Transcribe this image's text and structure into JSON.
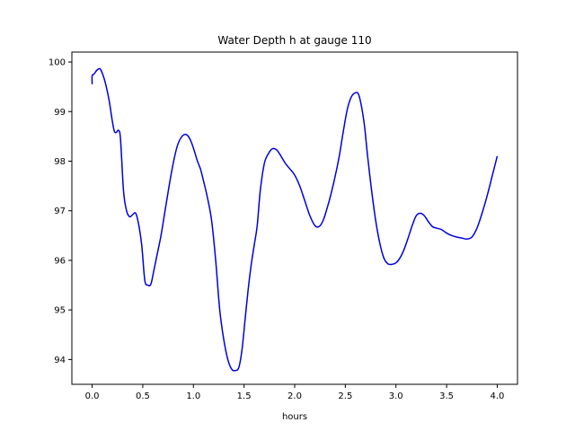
{
  "chart_data": {
    "type": "line",
    "title": "Water Depth h at gauge 110",
    "xlabel": "hours",
    "ylabel": "",
    "xlim": [
      -0.2,
      4.2
    ],
    "ylim": [
      93.5,
      100.2
    ],
    "xticks": [
      0.0,
      0.5,
      1.0,
      1.5,
      2.0,
      2.5,
      3.0,
      3.5,
      4.0
    ],
    "xtick_labels": [
      "0.0",
      "0.5",
      "1.0",
      "1.5",
      "2.0",
      "2.5",
      "3.0",
      "3.5",
      "4.0"
    ],
    "yticks": [
      94,
      95,
      96,
      97,
      98,
      99,
      100
    ],
    "ytick_labels": [
      "94",
      "95",
      "96",
      "97",
      "98",
      "99",
      "100"
    ],
    "grid": false,
    "series": [
      {
        "color": "#0000dd",
        "x": [
          0.0,
          0.0,
          0.02,
          0.05,
          0.08,
          0.11,
          0.14,
          0.17,
          0.2,
          0.22,
          0.24,
          0.26,
          0.28,
          0.31,
          0.34,
          0.37,
          0.4,
          0.43,
          0.46,
          0.49,
          0.52,
          0.55,
          0.58,
          0.61,
          0.64,
          0.68,
          0.72,
          0.76,
          0.8,
          0.84,
          0.88,
          0.92,
          0.95,
          0.98,
          1.01,
          1.04,
          1.07,
          1.1,
          1.14,
          1.18,
          1.22,
          1.26,
          1.3,
          1.34,
          1.38,
          1.42,
          1.45,
          1.48,
          1.51,
          1.54,
          1.57,
          1.6,
          1.63,
          1.66,
          1.7,
          1.74,
          1.78,
          1.82,
          1.85,
          1.88,
          1.91,
          1.95,
          2.0,
          2.05,
          2.1,
          2.15,
          2.2,
          2.24,
          2.28,
          2.32,
          2.36,
          2.4,
          2.44,
          2.48,
          2.52,
          2.56,
          2.6,
          2.63,
          2.66,
          2.69,
          2.72,
          2.76,
          2.8,
          2.84,
          2.88,
          2.92,
          2.96,
          3.0,
          3.04,
          3.08,
          3.12,
          3.16,
          3.2,
          3.24,
          3.28,
          3.32,
          3.36,
          3.4,
          3.45,
          3.5,
          3.55,
          3.6,
          3.65,
          3.7,
          3.75,
          3.8,
          3.85,
          3.9,
          3.95,
          4.0
        ],
        "y": [
          99.55,
          99.72,
          99.76,
          99.84,
          99.86,
          99.72,
          99.5,
          99.2,
          98.8,
          98.6,
          98.58,
          98.62,
          98.45,
          97.4,
          97.0,
          96.88,
          96.92,
          96.95,
          96.72,
          96.3,
          95.6,
          95.5,
          95.52,
          95.8,
          96.1,
          96.5,
          97.0,
          97.5,
          97.95,
          98.3,
          98.48,
          98.54,
          98.5,
          98.38,
          98.2,
          98.0,
          97.84,
          97.6,
          97.25,
          96.8,
          96.0,
          95.0,
          94.4,
          94.0,
          93.8,
          93.78,
          93.85,
          94.2,
          94.8,
          95.4,
          95.9,
          96.3,
          96.7,
          97.4,
          97.95,
          98.15,
          98.25,
          98.23,
          98.15,
          98.05,
          97.95,
          97.85,
          97.72,
          97.5,
          97.2,
          96.9,
          96.7,
          96.68,
          96.8,
          97.05,
          97.35,
          97.7,
          98.1,
          98.6,
          99.05,
          99.3,
          99.38,
          99.35,
          99.1,
          98.7,
          98.1,
          97.4,
          96.8,
          96.35,
          96.05,
          95.93,
          95.92,
          95.95,
          96.05,
          96.22,
          96.45,
          96.7,
          96.9,
          96.95,
          96.9,
          96.78,
          96.68,
          96.65,
          96.62,
          96.55,
          96.5,
          96.47,
          96.45,
          96.43,
          96.47,
          96.65,
          96.95,
          97.3,
          97.7,
          98.1
        ]
      }
    ]
  }
}
